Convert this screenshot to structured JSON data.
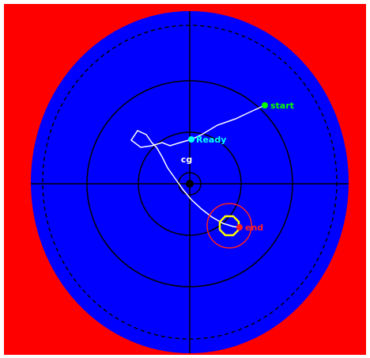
{
  "labels": {
    "start": "start",
    "ready": "Ready",
    "cg": "cg",
    "end": "end"
  }
}
